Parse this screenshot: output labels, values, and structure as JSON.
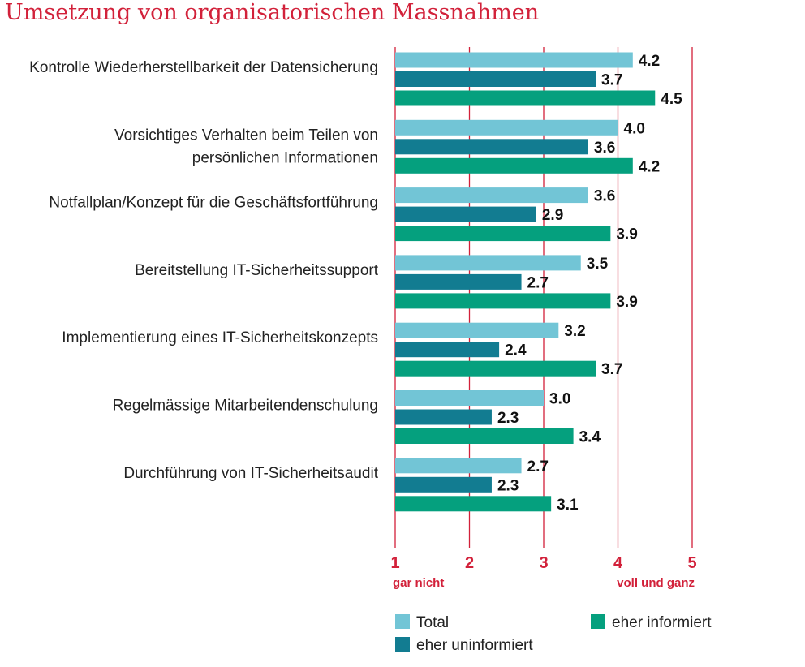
{
  "chart_data": {
    "type": "bar",
    "orientation": "horizontal",
    "title": "Umsetzung von organisatorischen Massnahmen",
    "categories": [
      [
        "Kontrolle Wiederherstellbarkeit der Datensicherung"
      ],
      [
        "Vorsichtiges Verhalten beim Teilen von",
        "persönlichen Informationen"
      ],
      [
        "Notfallplan/Konzept für die Geschäftsfortführung"
      ],
      [
        "Bereitstellung IT-Sicherheitssupport"
      ],
      [
        "Implementierung eines IT-Sicherheitskonzepts"
      ],
      [
        "Regelmässige Mitarbeitendenschulung"
      ],
      [
        "Durchführung von IT-Sicherheitsaudit"
      ]
    ],
    "series": [
      {
        "name": "Total",
        "color": "#72c5d6",
        "values": [
          4.2,
          4.0,
          3.6,
          3.5,
          3.2,
          3.0,
          2.7
        ],
        "labels": [
          "4.2",
          "4.0",
          "3.6",
          "3.5",
          "3.2",
          "3.0",
          "2.7"
        ]
      },
      {
        "name": "eher uninformiert",
        "color": "#127c91",
        "values": [
          3.7,
          3.6,
          2.9,
          2.7,
          2.4,
          2.3,
          2.3
        ],
        "labels": [
          "3.7",
          "3.6",
          "2.9",
          "2.7",
          "2.4",
          "2.3",
          "2.3"
        ]
      },
      {
        "name": "eher informiert",
        "color": "#05a07e",
        "values": [
          4.5,
          4.2,
          3.9,
          3.9,
          3.7,
          3.4,
          3.1
        ],
        "labels": [
          "4.5",
          "4.2",
          "3.9",
          "3.9",
          "3.7",
          "3.4",
          "3.1"
        ]
      }
    ],
    "xlim": [
      1,
      5
    ],
    "ticks": [
      "1",
      "2",
      "3",
      "4",
      "5"
    ],
    "tick_sublabels": {
      "min": "gar nicht",
      "max": "voll und ganz"
    },
    "grid_color": "#d2213a",
    "legend_position": "bottom"
  }
}
